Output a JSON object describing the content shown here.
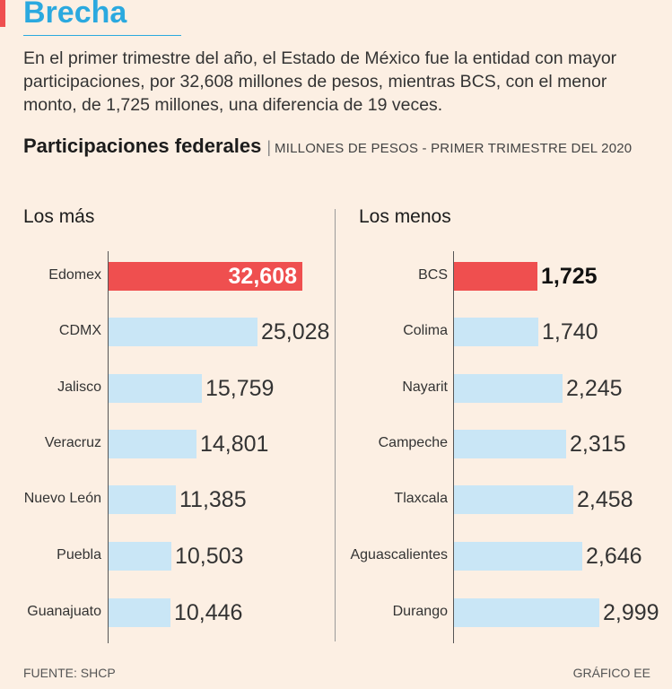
{
  "header": {
    "headline": "Brecha",
    "intro": "En el primer trimestre del año, el Estado de México fue la entidad con mayor participaciones, por 32,608 millones de pesos, mientras BCS, con el menor monto, de 1,725 millones, una diferencia de 19 veces.",
    "chart_title": "Participaciones federales",
    "chart_subtitle": "MILLONES DE PESOS - PRIMER TRIMESTRE DEL 2020"
  },
  "colors": {
    "highlight": "#ef4f4f",
    "bar": "#c9e6f6",
    "headline": "#2ba9df",
    "background": "#fcefe3"
  },
  "chart_data": [
    {
      "type": "bar",
      "orientation": "horizontal",
      "title": "Los más",
      "categories": [
        "Edomex",
        "CDMX",
        "Jalisco",
        "Veracruz",
        "Nuevo León",
        "Puebla",
        "Guanajuato"
      ],
      "values": [
        32608,
        25028,
        15759,
        14801,
        11385,
        10503,
        10446
      ],
      "labels": [
        "32,608",
        "25,028",
        "15,759",
        "14,801",
        "11,385",
        "10,503",
        "10,446"
      ],
      "highlight_index": 0
    },
    {
      "type": "bar",
      "orientation": "horizontal",
      "title": "Los menos",
      "categories": [
        "BCS",
        "Colima",
        "Nayarit",
        "Campeche",
        "Tlaxcala",
        "Aguascalientes",
        "Durango"
      ],
      "values": [
        1725,
        1740,
        2245,
        2315,
        2458,
        2646,
        2999
      ],
      "labels": [
        "1,725",
        "1,740",
        "2,245",
        "2,315",
        "2,458",
        "2,646",
        "2,999"
      ],
      "highlight_index": 0
    }
  ],
  "footer": {
    "source": "FUENTE: SHCP",
    "credit": "GRÁFICO EE"
  }
}
